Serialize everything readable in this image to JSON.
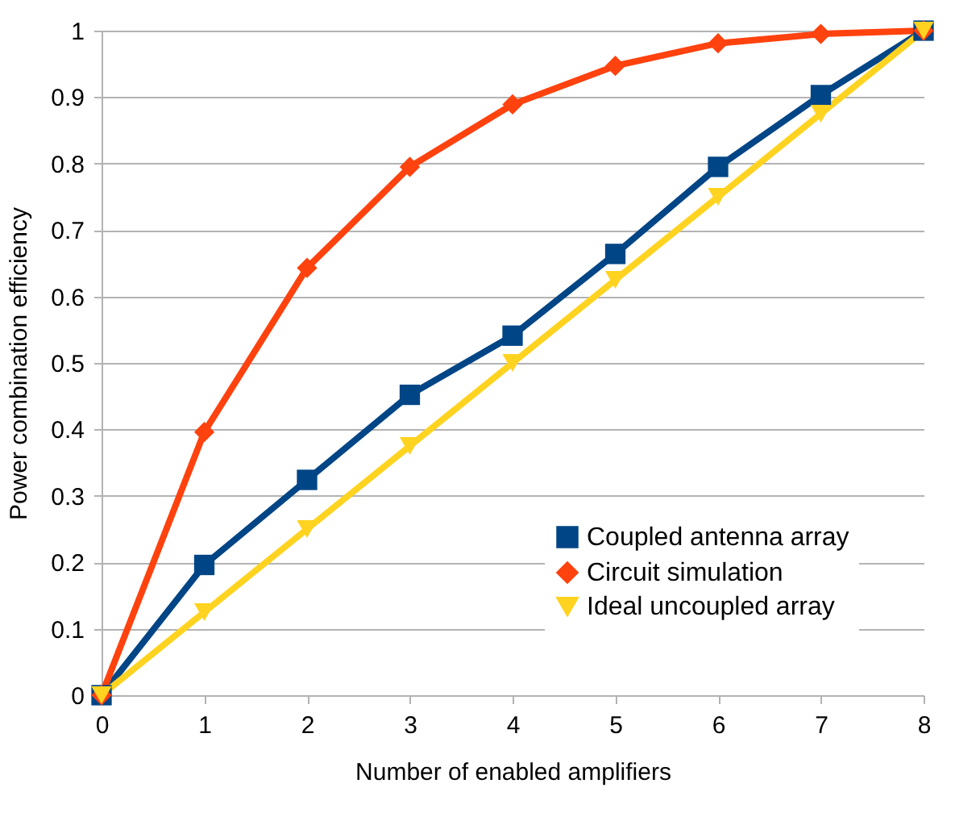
{
  "chart_data": {
    "type": "line",
    "xlabel": "Number of enabled amplifiers",
    "ylabel": "Power combination efficiency",
    "x": [
      0,
      1,
      2,
      3,
      4,
      5,
      6,
      7,
      8
    ],
    "series": [
      {
        "name": "Coupled antenna array",
        "color": "#004586",
        "marker": "square",
        "values": [
          0,
          0.196,
          0.324,
          0.452,
          0.541,
          0.664,
          0.795,
          0.903,
          1
        ]
      },
      {
        "name": "Circuit simulation",
        "color": "#ff420e",
        "marker": "diamond",
        "values": [
          0,
          0.396,
          0.643,
          0.795,
          0.889,
          0.947,
          0.981,
          0.995,
          1
        ]
      },
      {
        "name": "Ideal uncoupled array",
        "color": "#ffd320",
        "marker": "triangle-down",
        "values": [
          0,
          0.125,
          0.25,
          0.375,
          0.5,
          0.625,
          0.75,
          0.875,
          1
        ]
      }
    ],
    "xlim": [
      0,
      8
    ],
    "xticks": [
      0,
      1,
      2,
      3,
      4,
      5,
      6,
      7,
      8
    ],
    "ylim": [
      0,
      1
    ],
    "yticks": [
      0,
      0.1,
      0.2,
      0.3,
      0.4,
      0.5,
      0.6,
      0.7,
      0.8,
      0.9,
      1
    ],
    "grid": "y",
    "legend": "bottom right",
    "line_style": "solid"
  }
}
